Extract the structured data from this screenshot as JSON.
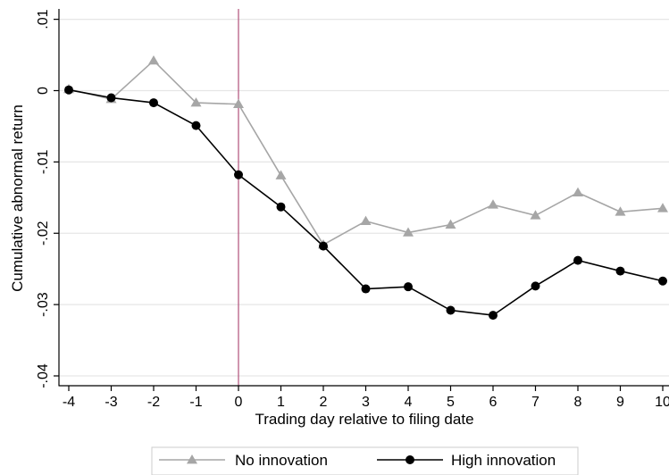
{
  "chart_data": {
    "type": "line",
    "xlabel": "Trading day relative to filing date",
    "ylabel": "Cumulative abnormal return",
    "x": [
      -4,
      -3,
      -2,
      -1,
      0,
      1,
      2,
      3,
      4,
      5,
      6,
      7,
      8,
      9,
      10
    ],
    "xticks": [
      "-4",
      "-3",
      "-2",
      "-1",
      "0",
      "1",
      "2",
      "3",
      "4",
      "5",
      "6",
      "7",
      "8",
      "9",
      "10"
    ],
    "yticks": [
      ".01",
      "0",
      "-.01",
      "-.02",
      "-.03",
      "-.04"
    ],
    "ytick_values": [
      0.01,
      0,
      -0.01,
      -0.02,
      -0.03,
      -0.04
    ],
    "ylim": [
      -0.0415,
      0.011
    ],
    "xlim": [
      -4.2,
      10.2
    ],
    "grid": true,
    "vline_x": 0,
    "legend_position": "bottom",
    "series": [
      {
        "name": "No innovation",
        "color": "#a6a6a6",
        "marker": "triangle",
        "values": [
          0.0002,
          -0.0012,
          0.0042,
          -0.0017,
          -0.0019,
          -0.0119,
          -0.0216,
          -0.0183,
          -0.0199,
          -0.0188,
          -0.016,
          -0.0175,
          -0.0143,
          -0.017,
          -0.0165
        ]
      },
      {
        "name": "High innovation",
        "color": "#000000",
        "marker": "circle",
        "values": [
          0.0001,
          -0.001,
          -0.0017,
          -0.0049,
          -0.0118,
          -0.0163,
          -0.0218,
          -0.0278,
          -0.0275,
          -0.0308,
          -0.0315,
          -0.0274,
          -0.0238,
          -0.0253,
          -0.0267
        ]
      }
    ],
    "colors": {
      "grid": "#e6e6e6",
      "vline": "#b0507a",
      "axis": "#000000"
    }
  }
}
